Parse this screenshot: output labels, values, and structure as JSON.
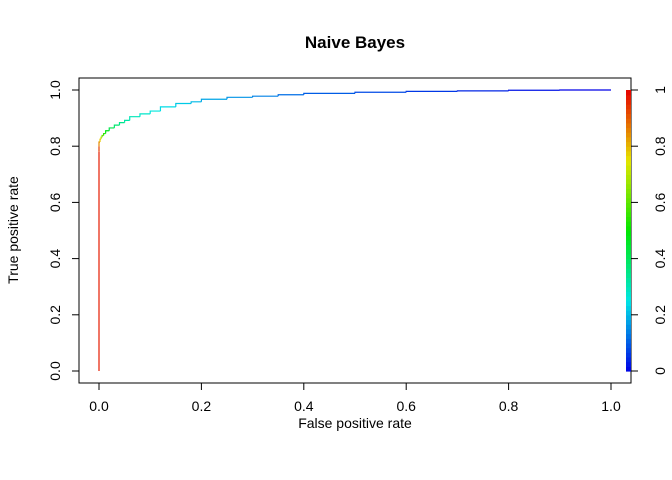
{
  "chart_data": {
    "type": "line",
    "title": "Naive Bayes",
    "xlabel": "False positive rate",
    "ylabel": "True positive rate",
    "xlim": [
      0,
      1
    ],
    "ylim": [
      0,
      1
    ],
    "xticks": [
      "0.0",
      "0.2",
      "0.4",
      "0.6",
      "0.8",
      "1.0"
    ],
    "yticks": [
      "0.0",
      "0.2",
      "0.4",
      "0.6",
      "0.8",
      "1.0"
    ],
    "grid": false,
    "legend": "none",
    "series": [
      {
        "x": [
          0.0,
          0.0,
          0.0,
          0.002,
          0.004,
          0.006,
          0.009,
          0.013,
          0.02,
          0.03,
          0.04,
          0.05,
          0.06,
          0.08,
          0.1,
          0.12,
          0.15,
          0.18,
          0.2,
          0.25,
          0.3,
          0.35,
          0.4,
          0.5,
          0.6,
          0.7,
          0.8,
          0.9,
          1.0
        ],
        "y": [
          0.0,
          0.78,
          0.8,
          0.815,
          0.825,
          0.832,
          0.838,
          0.845,
          0.855,
          0.865,
          0.875,
          0.884,
          0.892,
          0.905,
          0.915,
          0.925,
          0.94,
          0.952,
          0.958,
          0.967,
          0.974,
          0.978,
          0.983,
          0.988,
          0.992,
          0.995,
          0.997,
          0.999,
          1.0
        ],
        "cutoff": [
          1.0,
          0.97,
          0.93,
          0.85,
          0.78,
          0.7,
          0.62,
          0.55,
          0.48,
          0.42,
          0.38,
          0.35,
          0.32,
          0.3,
          0.28,
          0.26,
          0.24,
          0.22,
          0.2,
          0.18,
          0.16,
          0.14,
          0.12,
          0.1,
          0.08,
          0.06,
          0.04,
          0.02,
          0.0
        ]
      }
    ],
    "colorbar": {
      "range": [
        0,
        1
      ],
      "ticks": [
        "0",
        "0.2",
        "0.4",
        "0.6",
        "0.8",
        "1"
      ],
      "colormap": "rainbow (blue to red)"
    }
  }
}
